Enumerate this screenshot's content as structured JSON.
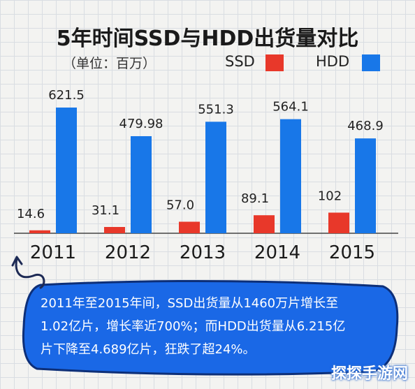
{
  "chart_data": {
    "type": "bar",
    "title": "5年时间SSD与HDD出货量对比",
    "unit_label": "（单位：百万）",
    "categories": [
      "2011",
      "2012",
      "2013",
      "2014",
      "2015"
    ],
    "series": [
      {
        "name": "SSD",
        "color": "#e8382a",
        "values": [
          14.6,
          31.1,
          57.0,
          89.1,
          102
        ],
        "labels": [
          "14.6",
          "31.1",
          "57.0",
          "89.1",
          "102"
        ]
      },
      {
        "name": "HDD",
        "color": "#1877e8",
        "values": [
          621.5,
          479.98,
          551.3,
          564.1,
          468.9
        ],
        "labels": [
          "621.5",
          "479.98",
          "551.3",
          "564.1",
          "468.9"
        ]
      }
    ],
    "legend_position": "top-right",
    "ylim": [
      0,
      700
    ],
    "grid": false
  },
  "callout": {
    "lines": [
      "2011年至2015年间，SSD出货量从1460万片增长至",
      "1.02亿片，增长率近700%；而HDD出货量从6.215亿",
      "片下降至4.689亿片，狂跌了超24%。"
    ]
  },
  "watermark": "探探手游网"
}
